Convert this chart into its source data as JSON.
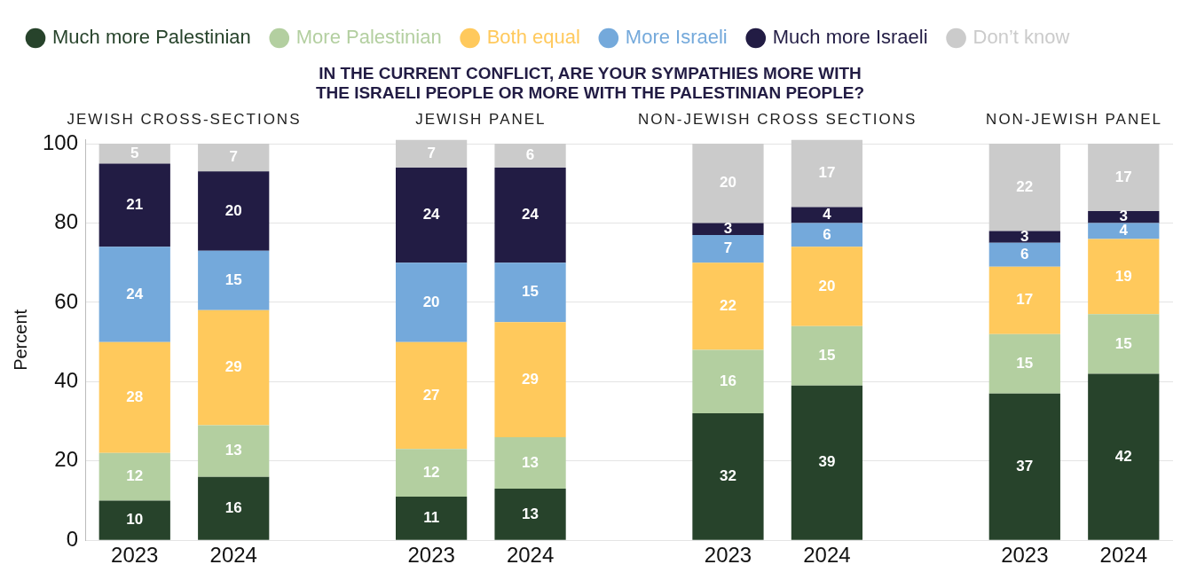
{
  "chart_data": {
    "type": "bar",
    "stacked": true,
    "title": "IN THE CURRENT CONFLICT, ARE YOUR SYMPATHIES MORE WITH THE ISRAELI PEOPLE OR MORE WITH THE PALESTINIAN PEOPLE?",
    "ylabel": "Percent",
    "categories": [
      "2023",
      "2024",
      null,
      "2023",
      "2024",
      null,
      "2023",
      "2024",
      null,
      "2023",
      "2024"
    ],
    "series": [
      {
        "name": "Much more Palestinian",
        "color": "#27432b",
        "values": [
          10,
          16,
          null,
          11,
          13,
          null,
          32,
          39,
          null,
          37,
          42
        ]
      },
      {
        "name": "More Palestinian",
        "color": "#b3cfa0",
        "values": [
          12,
          13,
          null,
          12,
          13,
          null,
          16,
          15,
          null,
          15,
          15
        ]
      },
      {
        "name": "Both equal",
        "color": "#ffc95c",
        "values": [
          28,
          29,
          null,
          27,
          29,
          null,
          22,
          20,
          null,
          17,
          19
        ]
      },
      {
        "name": "More Israeli",
        "color": "#74a9db",
        "values": [
          24,
          15,
          null,
          20,
          15,
          null,
          7,
          6,
          null,
          6,
          4
        ]
      },
      {
        "name": "Much more Israeli",
        "color": "#221c44",
        "values": [
          21,
          20,
          null,
          24,
          24,
          null,
          3,
          4,
          null,
          3,
          3
        ]
      },
      {
        "name": "Don’t know",
        "color": "#cbcbcb",
        "values": [
          5,
          7,
          null,
          7,
          6,
          null,
          20,
          17,
          null,
          22,
          17
        ]
      }
    ],
    "annotations": [
      "JEWISH CROSS-SECTIONS",
      "JEWISH PANEL",
      "NON-JEWISH CROSS SECTIONS",
      "NON-JEWISH PANEL"
    ],
    "ylim": [
      0,
      101
    ],
    "yticks": [
      0,
      20,
      40,
      60,
      80,
      100
    ],
    "grid": "y",
    "legend": "top",
    "data_labels": true
  }
}
